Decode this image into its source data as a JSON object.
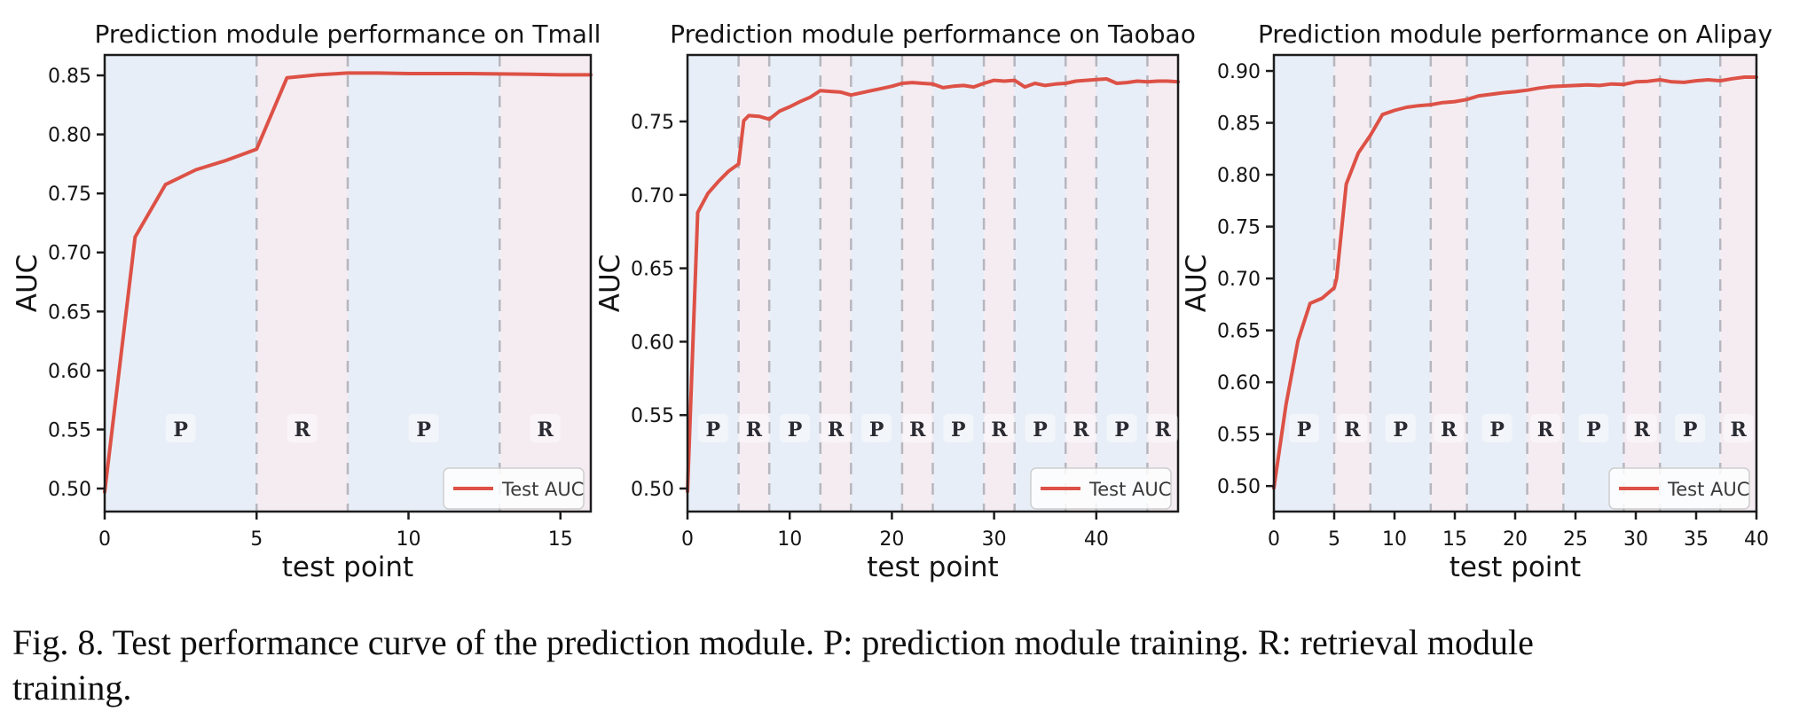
{
  "figure": {
    "caption_lines": [
      "Fig. 8.  Test performance curve of the prediction module. P: prediction module training. R: retrieval module",
      "training."
    ]
  },
  "style": {
    "line_color": "#dd5146",
    "p_band_color": "#e8eef7",
    "r_band_color": "#f4ecf1",
    "boundary_color": "#b6b6be",
    "frame_color": "#1c1c1c",
    "region_label_color": "#2b2b33"
  },
  "chart_data": [
    {
      "id": "tmall",
      "type": "line",
      "title": "Prediction module performance on Tmall",
      "xlabel": "test point",
      "ylabel": "AUC",
      "legend": {
        "label": "Test AUC",
        "position": "lower right"
      },
      "xlim": [
        0,
        16
      ],
      "ylim": [
        0.4805,
        0.8673
      ],
      "xticks": [
        0,
        5,
        10,
        15
      ],
      "yticks": [
        0.5,
        0.55,
        0.6,
        0.65,
        0.7,
        0.75,
        0.8,
        0.85
      ],
      "grid": false,
      "regions": [
        {
          "label": "P",
          "from": 0,
          "to": 5
        },
        {
          "label": "R",
          "from": 5,
          "to": 8
        },
        {
          "label": "P",
          "from": 8,
          "to": 13
        },
        {
          "label": "R",
          "from": 13,
          "to": 16
        }
      ],
      "series": [
        {
          "name": "Test AUC",
          "points": [
            [
              0,
              0.497
            ],
            [
              1,
              0.713
            ],
            [
              2,
              0.7575
            ],
            [
              3,
              0.77
            ],
            [
              4,
              0.778
            ],
            [
              5,
              0.7875
            ],
            [
              6,
              0.848
            ],
            [
              7,
              0.8505
            ],
            [
              8,
              0.852
            ],
            [
              9,
              0.852
            ],
            [
              10,
              0.8515
            ],
            [
              11,
              0.8515
            ],
            [
              12,
              0.8515
            ],
            [
              13,
              0.8512
            ],
            [
              14,
              0.851
            ],
            [
              15,
              0.8505
            ],
            [
              16,
              0.8505
            ]
          ]
        }
      ]
    },
    {
      "id": "taobao",
      "type": "line",
      "title": "Prediction module performance on Taobao",
      "xlabel": "test point",
      "ylabel": "AUC",
      "legend": {
        "label": "Test AUC",
        "position": "lower right"
      },
      "xlim": [
        0,
        48
      ],
      "ylim": [
        0.4843,
        0.7953
      ],
      "xticks": [
        0,
        10,
        20,
        30,
        40
      ],
      "yticks": [
        0.5,
        0.55,
        0.6,
        0.65,
        0.7,
        0.75
      ],
      "grid": false,
      "regions": [
        {
          "label": "P",
          "from": 0,
          "to": 5
        },
        {
          "label": "R",
          "from": 5,
          "to": 8
        },
        {
          "label": "P",
          "from": 8,
          "to": 13
        },
        {
          "label": "R",
          "from": 13,
          "to": 16
        },
        {
          "label": "P",
          "from": 16,
          "to": 21
        },
        {
          "label": "R",
          "from": 21,
          "to": 24
        },
        {
          "label": "P",
          "from": 24,
          "to": 29
        },
        {
          "label": "R",
          "from": 29,
          "to": 32
        },
        {
          "label": "P",
          "from": 32,
          "to": 37
        },
        {
          "label": "R",
          "from": 37,
          "to": 40
        },
        {
          "label": "P",
          "from": 40,
          "to": 45
        },
        {
          "label": "R",
          "from": 45,
          "to": 48
        }
      ],
      "series": [
        {
          "name": "Test AUC",
          "points": [
            [
              0,
              0.498
            ],
            [
              1,
              0.688
            ],
            [
              2,
              0.701
            ],
            [
              3,
              0.709
            ],
            [
              4,
              0.716
            ],
            [
              5,
              0.721
            ],
            [
              5.5,
              0.7505
            ],
            [
              6,
              0.754
            ],
            [
              7,
              0.7535
            ],
            [
              8,
              0.7515
            ],
            [
              9,
              0.757
            ],
            [
              10,
              0.76
            ],
            [
              11,
              0.7635
            ],
            [
              12,
              0.7665
            ],
            [
              13,
              0.771
            ],
            [
              14,
              0.7705
            ],
            [
              15,
              0.77
            ],
            [
              16,
              0.768
            ],
            [
              17,
              0.7695
            ],
            [
              18,
              0.771
            ],
            [
              19,
              0.7725
            ],
            [
              20,
              0.774
            ],
            [
              21,
              0.776
            ],
            [
              22,
              0.7765
            ],
            [
              23,
              0.776
            ],
            [
              24,
              0.7755
            ],
            [
              25,
              0.773
            ],
            [
              26,
              0.774
            ],
            [
              27,
              0.7745
            ],
            [
              28,
              0.7735
            ],
            [
              29,
              0.776
            ],
            [
              30,
              0.778
            ],
            [
              31,
              0.7775
            ],
            [
              32,
              0.778
            ],
            [
              33,
              0.7735
            ],
            [
              34,
              0.776
            ],
            [
              35,
              0.7745
            ],
            [
              36,
              0.7755
            ],
            [
              37,
              0.776
            ],
            [
              38,
              0.7775
            ],
            [
              39,
              0.778
            ],
            [
              40,
              0.7785
            ],
            [
              41,
              0.779
            ],
            [
              42,
              0.776
            ],
            [
              43,
              0.7765
            ],
            [
              44,
              0.7775
            ],
            [
              45,
              0.777
            ],
            [
              46,
              0.7775
            ],
            [
              47,
              0.7775
            ],
            [
              48,
              0.777
            ]
          ]
        }
      ]
    },
    {
      "id": "alipay",
      "type": "line",
      "title": "Prediction module performance on Alipay",
      "xlabel": "test point",
      "ylabel": "AUC",
      "legend": {
        "label": "Test AUC",
        "position": "lower right"
      },
      "xlim": [
        0,
        40
      ],
      "ylim": [
        0.4754,
        0.9154
      ],
      "xticks": [
        0,
        5,
        10,
        15,
        20,
        25,
        30,
        35,
        40
      ],
      "yticks": [
        0.5,
        0.55,
        0.6,
        0.65,
        0.7,
        0.75,
        0.8,
        0.85,
        0.9
      ],
      "grid": false,
      "regions": [
        {
          "label": "P",
          "from": 0,
          "to": 5
        },
        {
          "label": "R",
          "from": 5,
          "to": 8
        },
        {
          "label": "P",
          "from": 8,
          "to": 13
        },
        {
          "label": "R",
          "from": 13,
          "to": 16
        },
        {
          "label": "P",
          "from": 16,
          "to": 21
        },
        {
          "label": "R",
          "from": 21,
          "to": 24
        },
        {
          "label": "P",
          "from": 24,
          "to": 29
        },
        {
          "label": "R",
          "from": 29,
          "to": 32
        },
        {
          "label": "P",
          "from": 32,
          "to": 37
        },
        {
          "label": "R",
          "from": 37,
          "to": 40
        }
      ],
      "series": [
        {
          "name": "Test AUC",
          "points": [
            [
              0,
              0.498
            ],
            [
              1,
              0.578
            ],
            [
              2,
              0.64
            ],
            [
              3,
              0.676
            ],
            [
              4,
              0.681
            ],
            [
              5,
              0.691
            ],
            [
              5.2,
              0.7
            ],
            [
              6,
              0.791
            ],
            [
              7,
              0.821
            ],
            [
              8,
              0.838
            ],
            [
              9,
              0.858
            ],
            [
              10,
              0.862
            ],
            [
              11,
              0.865
            ],
            [
              12,
              0.8665
            ],
            [
              13,
              0.8675
            ],
            [
              14,
              0.8695
            ],
            [
              15,
              0.8705
            ],
            [
              16,
              0.8725
            ],
            [
              17,
              0.876
            ],
            [
              18,
              0.8775
            ],
            [
              19,
              0.879
            ],
            [
              20,
              0.88
            ],
            [
              21,
              0.8815
            ],
            [
              22,
              0.8835
            ],
            [
              23,
              0.885
            ],
            [
              24,
              0.8855
            ],
            [
              25,
              0.886
            ],
            [
              26,
              0.8865
            ],
            [
              27,
              0.886
            ],
            [
              28,
              0.8875
            ],
            [
              29,
              0.887
            ],
            [
              30,
              0.8895
            ],
            [
              31,
              0.89
            ],
            [
              32,
              0.8915
            ],
            [
              33,
              0.8895
            ],
            [
              34,
              0.889
            ],
            [
              35,
              0.8905
            ],
            [
              36,
              0.8915
            ],
            [
              37,
              0.8905
            ],
            [
              38,
              0.8925
            ],
            [
              39,
              0.894
            ],
            [
              40,
              0.894
            ]
          ]
        }
      ]
    }
  ]
}
